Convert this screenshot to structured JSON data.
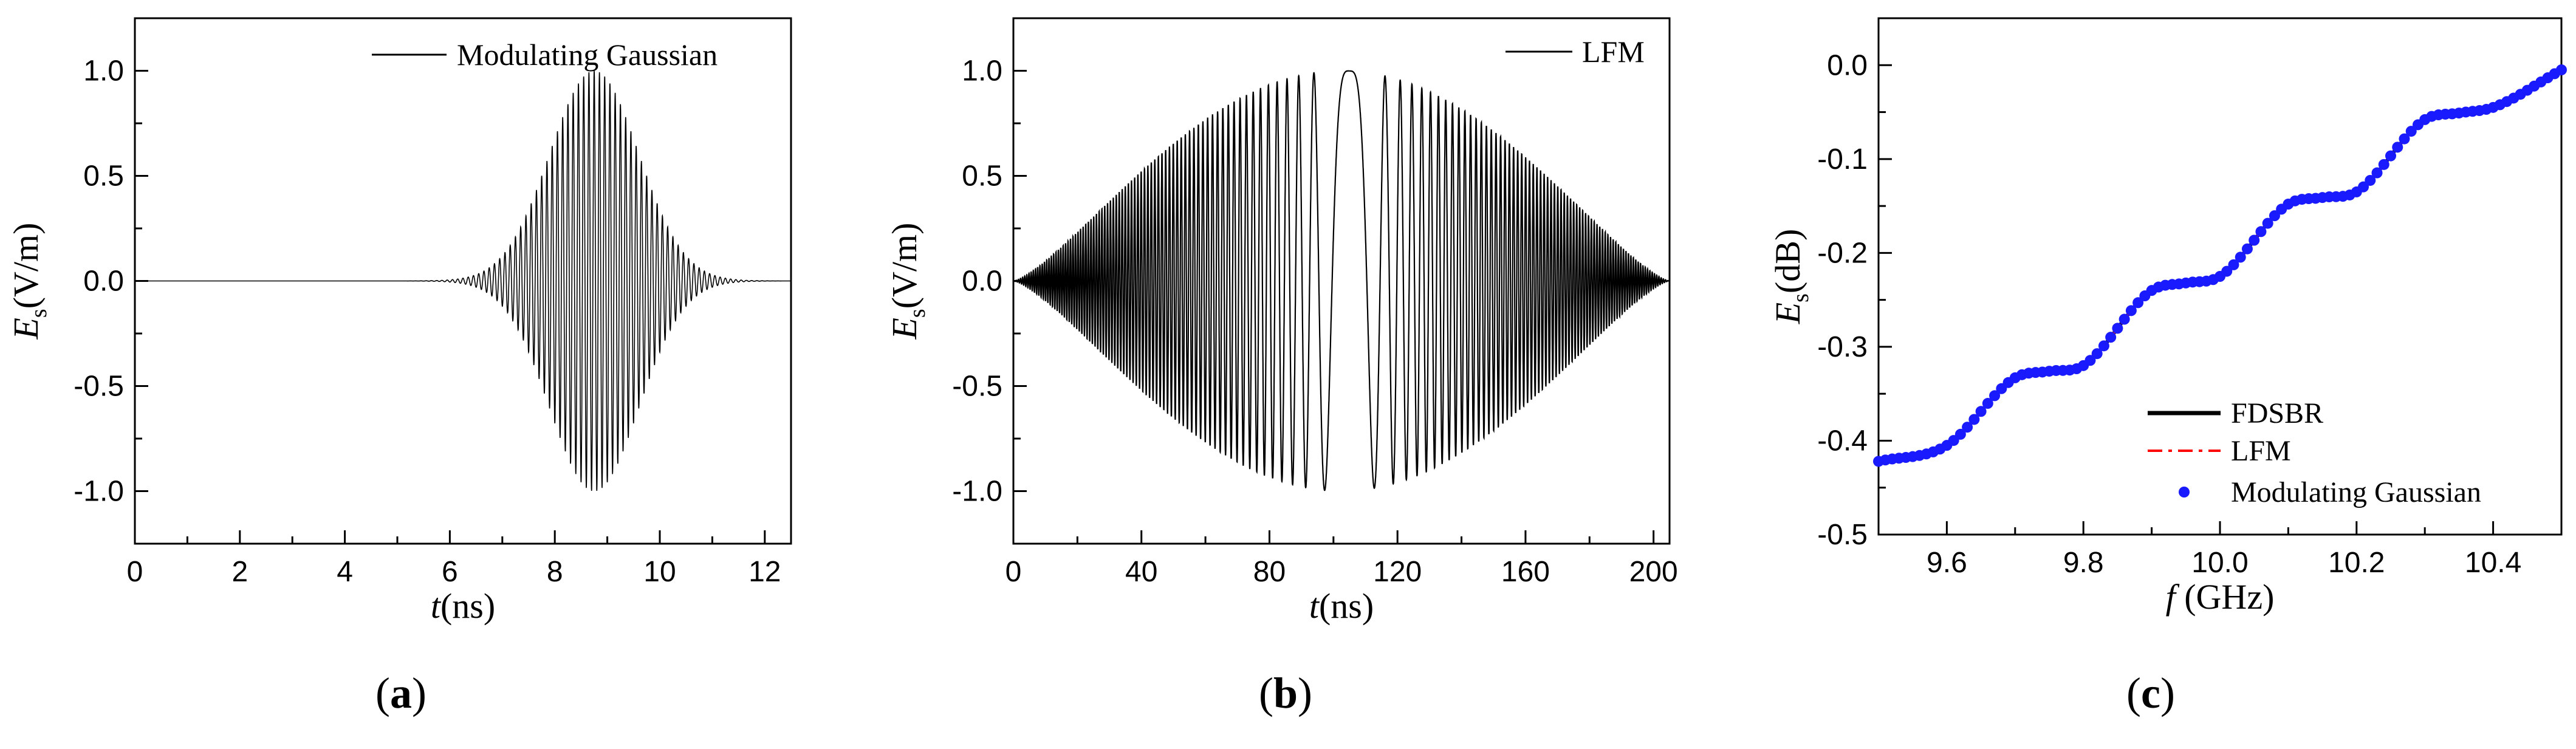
{
  "chart_data": [
    {
      "type": "line",
      "id": "a",
      "caption": "a",
      "xlabel_sym": "t",
      "xlabel_unit": "(ns)",
      "ylabel_sym": "E",
      "ylabel_sub": "s",
      "ylabel_unit": "(V/m)",
      "xlim": [
        0,
        12.5
      ],
      "ylim": [
        -1.25,
        1.25
      ],
      "xticks": [
        0,
        2,
        4,
        6,
        8,
        10,
        12
      ],
      "xtick_labels": [
        "0",
        "2",
        "4",
        "6",
        "8",
        "10",
        "12"
      ],
      "yticks": [
        -1.0,
        -0.5,
        0.0,
        0.5,
        1.0
      ],
      "ytick_labels": [
        "-1.0",
        "-0.5",
        "0.0",
        "0.5",
        "1.0"
      ],
      "grid": false,
      "legend_position": "top-right",
      "series": [
        {
          "name": "Modulating Gaussian",
          "color": "#000000",
          "form": "gaussian-modulated sinusoid",
          "amplitude": 1.0,
          "center": 8.75,
          "sigma": 0.85,
          "carrier_period": 0.1
        }
      ]
    },
    {
      "type": "line",
      "id": "b",
      "caption": "b",
      "xlabel_sym": "t",
      "xlabel_unit": "(ns)",
      "ylabel_sym": "E",
      "ylabel_sub": "s",
      "ylabel_unit": "(V/m)",
      "xlim": [
        0,
        205
      ],
      "ylim": [
        -1.25,
        1.25
      ],
      "xticks": [
        0,
        40,
        80,
        120,
        160,
        200
      ],
      "xtick_labels": [
        "0",
        "40",
        "80",
        "120",
        "160",
        "200"
      ],
      "yticks": [
        -1.0,
        -0.5,
        0.0,
        0.5,
        1.0
      ],
      "ytick_labels": [
        "-1.0",
        "-0.5",
        "0.0",
        "0.5",
        "1.0"
      ],
      "grid": false,
      "legend_position": "top-right",
      "series": [
        {
          "name": "LFM",
          "color": "#000000",
          "form": "linear frequency modulated chirp with bell envelope",
          "amplitude": 1.0,
          "duration": 205,
          "dip_center": 105
        }
      ]
    },
    {
      "type": "line",
      "id": "c",
      "caption": "c",
      "xlabel_sym": "f",
      "xlabel_unit": " (GHz)",
      "ylabel_sym": "E",
      "ylabel_sub": "s",
      "ylabel_unit": "(dB)",
      "xlim": [
        9.5,
        10.5
      ],
      "ylim": [
        -0.5,
        0.05
      ],
      "xticks": [
        9.6,
        9.8,
        10.0,
        10.2,
        10.4
      ],
      "xtick_labels": [
        "9.6",
        "9.8",
        "10.0",
        "10.2",
        "10.4"
      ],
      "yticks": [
        -0.5,
        -0.4,
        -0.3,
        -0.2,
        -0.1,
        0.0
      ],
      "ytick_labels": [
        "-0.5",
        "-0.4",
        "-0.3",
        "-0.2",
        "-0.1",
        "0.0"
      ],
      "grid": false,
      "legend_position": "bottom-right",
      "x": [
        9.5,
        9.6,
        9.7,
        9.75,
        9.8,
        9.9,
        9.95,
        10.0,
        10.1,
        10.15,
        10.2,
        10.3,
        10.35,
        10.4,
        10.5
      ],
      "series": [
        {
          "name": "FDSBR",
          "color": "#000000",
          "style": "solid",
          "y": [
            -0.422,
            -0.405,
            -0.333,
            -0.326,
            -0.32,
            -0.24,
            -0.232,
            -0.225,
            -0.148,
            -0.141,
            -0.135,
            -0.058,
            -0.051,
            -0.045,
            -0.005
          ]
        },
        {
          "name": "LFM",
          "color": "#ff0000",
          "style": "dash-dot",
          "y": [
            -0.422,
            -0.405,
            -0.333,
            -0.326,
            -0.32,
            -0.24,
            -0.232,
            -0.225,
            -0.148,
            -0.141,
            -0.135,
            -0.058,
            -0.051,
            -0.045,
            -0.005
          ]
        },
        {
          "name": "Modulating Gaussian",
          "color": "#1a1aff",
          "style": "markers",
          "y": [
            -0.422,
            -0.405,
            -0.333,
            -0.326,
            -0.32,
            -0.24,
            -0.232,
            -0.225,
            -0.148,
            -0.141,
            -0.135,
            -0.058,
            -0.051,
            -0.045,
            -0.005
          ]
        }
      ]
    }
  ]
}
